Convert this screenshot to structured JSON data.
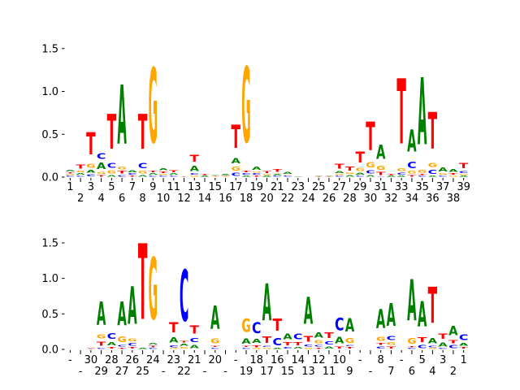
{
  "colors": {
    "A": "#008000",
    "C": "#0000ff",
    "G": "#ffa500",
    "T": "#ff0000"
  },
  "chart_data": [
    {
      "type": "sequence-logo",
      "ylim": [
        0,
        1.64
      ],
      "yticks": [
        "0.0",
        "0.5",
        "1.0",
        "1.5"
      ],
      "ytick_values": [
        0,
        0.5,
        1.0,
        1.5
      ],
      "xticklabels": [
        "1",
        "2",
        "3",
        "4",
        "5",
        "6",
        "7",
        "8",
        "9",
        "10",
        "11",
        "12",
        "13",
        "14",
        "15",
        "16",
        "17",
        "18",
        "19",
        "20",
        "21",
        "22",
        "23",
        "24",
        "25",
        "26",
        "27",
        "28",
        "29",
        "30",
        "31",
        "32",
        "33",
        "34",
        "35",
        "36",
        "37",
        "38",
        "39"
      ],
      "positions": [
        [
          [
            "C",
            0.02
          ],
          [
            "G",
            0.02
          ],
          [
            "T",
            0.02
          ],
          [
            "A",
            0.03
          ]
        ],
        [
          [
            "C",
            0.02
          ],
          [
            "A",
            0.03
          ],
          [
            "G",
            0.03
          ],
          [
            "T",
            0.08
          ]
        ],
        [
          [
            "C",
            0.04
          ],
          [
            "A",
            0.05
          ],
          [
            "G",
            0.08
          ],
          [
            "T",
            0.44
          ]
        ],
        [
          [
            "T",
            0.03
          ],
          [
            "G",
            0.04
          ],
          [
            "A",
            0.12
          ],
          [
            "C",
            0.11
          ]
        ],
        [
          [
            "A",
            0.03
          ],
          [
            "G",
            0.06
          ],
          [
            "C",
            0.09
          ],
          [
            "T",
            0.69
          ]
        ],
        [
          [
            "C",
            0.03
          ],
          [
            "T",
            0.05
          ],
          [
            "G",
            0.05
          ],
          [
            "A",
            1.17
          ]
        ],
        [
          [
            "T",
            0.02
          ],
          [
            "C",
            0.03
          ],
          [
            "A",
            0.04
          ]
        ],
        [
          [
            "A",
            0.03
          ],
          [
            "G",
            0.05
          ],
          [
            "C",
            0.1
          ],
          [
            "T",
            0.69
          ]
        ],
        [
          [
            "C",
            0.02
          ],
          [
            "A",
            0.03
          ],
          [
            "T",
            0.03
          ],
          [
            "G",
            1.49
          ]
        ],
        [
          [
            "C",
            0.02
          ],
          [
            "G",
            0.02
          ],
          [
            "T",
            0.03
          ],
          [
            "A",
            0.04
          ]
        ],
        [
          [
            "C",
            0.02
          ],
          [
            "A",
            0.03
          ],
          [
            "T",
            0.04
          ]
        ],
        [
          [
            "T",
            0.01
          ]
        ],
        [
          [
            "G",
            0.02
          ],
          [
            "C",
            0.03
          ],
          [
            "A",
            0.1
          ],
          [
            "T",
            0.13
          ]
        ],
        [
          [
            "A",
            0.02
          ],
          [
            "T",
            0.02
          ]
        ],
        [
          [
            "G",
            0.01
          ],
          [
            "T",
            0.01
          ],
          [
            "A",
            0.01
          ]
        ],
        [
          [
            "G",
            0.01
          ],
          [
            "T",
            0.01
          ],
          [
            "A",
            0.02
          ]
        ],
        [
          [
            "C",
            0.06
          ],
          [
            "G",
            0.08
          ],
          [
            "A",
            0.1
          ],
          [
            "T",
            0.46
          ]
        ],
        [
          [
            "A",
            0.02
          ],
          [
            "C",
            0.03
          ],
          [
            "T",
            0.03
          ],
          [
            "G",
            1.5
          ]
        ],
        [
          [
            "T",
            0.02
          ],
          [
            "C",
            0.03
          ],
          [
            "G",
            0.02
          ],
          [
            "A",
            0.06
          ]
        ],
        [
          [
            "A",
            0.02
          ],
          [
            "G",
            0.02
          ],
          [
            "T",
            0.04
          ]
        ],
        [
          [
            "C",
            0.02
          ],
          [
            "A",
            0.02
          ],
          [
            "G",
            0.01
          ],
          [
            "T",
            0.05
          ]
        ],
        [
          [
            "C",
            0.02
          ],
          [
            "G",
            0.01
          ],
          [
            "A",
            0.04
          ]
        ],
        [
          [
            "A",
            0.01
          ]
        ],
        [],
        [
          [
            "T",
            0.01
          ],
          [
            "A",
            0.01
          ]
        ],
        [
          [
            "T",
            0.01
          ],
          [
            "A",
            0.01
          ]
        ],
        [
          [
            "C",
            0.02
          ],
          [
            "G",
            0.02
          ],
          [
            "A",
            0.04
          ],
          [
            "T",
            0.09
          ]
        ],
        [
          [
            "A",
            0.03
          ],
          [
            "G",
            0.03
          ],
          [
            "T",
            0.08
          ]
        ],
        [
          [
            "C",
            0.02
          ],
          [
            "A",
            0.04
          ],
          [
            "G",
            0.06
          ],
          [
            "T",
            0.22
          ]
        ],
        [
          [
            "A",
            0.03
          ],
          [
            "C",
            0.06
          ],
          [
            "G",
            0.1
          ],
          [
            "T",
            0.56
          ]
        ],
        [
          [
            "C",
            0.01
          ],
          [
            "T",
            0.06
          ],
          [
            "G",
            0.08
          ],
          [
            "A",
            0.28
          ]
        ],
        [
          [
            "A",
            0.02
          ],
          [
            "T",
            0.02
          ]
        ],
        [
          [
            "A",
            0.02
          ],
          [
            "C",
            0.04
          ],
          [
            "G",
            0.05
          ],
          [
            "T",
            1.29
          ]
        ],
        [
          [
            "T",
            0.03
          ],
          [
            "G",
            0.05
          ],
          [
            "C",
            0.12
          ],
          [
            "A",
            0.44
          ]
        ],
        [
          [
            "C",
            0.02
          ],
          [
            "T",
            0.02
          ],
          [
            "G",
            0.05
          ],
          [
            "A",
            1.33
          ]
        ],
        [
          [
            "A",
            0.02
          ],
          [
            "C",
            0.08
          ],
          [
            "G",
            0.08
          ],
          [
            "T",
            0.72
          ]
        ],
        [
          [
            "C",
            0.02
          ],
          [
            "G",
            0.03
          ],
          [
            "A",
            0.08
          ]
        ],
        [
          [
            "G",
            0.02
          ],
          [
            "T",
            0.03
          ],
          [
            "A",
            0.05
          ]
        ],
        [
          [
            "A",
            0.02
          ],
          [
            "G",
            0.02
          ],
          [
            "C",
            0.04
          ],
          [
            "T",
            0.1
          ]
        ]
      ]
    },
    {
      "type": "sequence-logo",
      "ylim": [
        0,
        1.9
      ],
      "yticks": [
        "0.0",
        "0.5",
        "1.0",
        "1.5"
      ],
      "ytick_values": [
        0,
        0.5,
        1.0,
        1.5
      ],
      "xticklabels": [
        "-",
        "-",
        "30",
        "29",
        "28",
        "27",
        "26",
        "25",
        "24",
        "-",
        "23",
        "22",
        "21",
        "-",
        "20",
        "-",
        "-",
        "19",
        "18",
        "17",
        "16",
        "15",
        "14",
        "13",
        "12",
        "11",
        "10",
        "9",
        "-",
        "-",
        "8",
        "7",
        "-",
        "6",
        "5",
        "4",
        "3",
        "2",
        "1"
      ],
      "positions": [
        [],
        [],
        [
          [
            "T",
            0.01
          ],
          [
            "C",
            0.01
          ],
          [
            "G",
            0.01
          ]
        ],
        [
          [
            "C",
            0.03
          ],
          [
            "T",
            0.1
          ],
          [
            "G",
            0.1
          ],
          [
            "A",
            0.55
          ]
        ],
        [
          [
            "T",
            0.04
          ],
          [
            "A",
            0.08
          ],
          [
            "C",
            0.14
          ]
        ],
        [
          [
            "T",
            0.03
          ],
          [
            "C",
            0.04
          ],
          [
            "G",
            0.14
          ],
          [
            "A",
            0.57
          ]
        ],
        [
          [
            "T",
            0.04
          ],
          [
            "C",
            0.06
          ],
          [
            "G",
            0.06
          ],
          [
            "A",
            0.9
          ]
        ],
        [
          [
            "A",
            0.03
          ],
          [
            "T",
            1.81
          ]
        ],
        [
          [
            "C",
            0.02
          ],
          [
            "T",
            0.04
          ],
          [
            "A",
            0.04
          ],
          [
            "G",
            1.48
          ]
        ],
        [],
        [
          [
            "G",
            0.02
          ],
          [
            "C",
            0.05
          ],
          [
            "A",
            0.12
          ],
          [
            "T",
            0.24
          ]
        ],
        [
          [
            "G",
            0.04
          ],
          [
            "A",
            0.05
          ],
          [
            "T",
            0.04
          ],
          [
            "C",
            1.23
          ]
        ],
        [
          [
            "A",
            0.08
          ],
          [
            "C",
            0.1
          ],
          [
            "T",
            0.19
          ]
        ],
        [],
        [
          [
            "C",
            0.03
          ],
          [
            "T",
            0.03
          ],
          [
            "G",
            0.11
          ],
          [
            "A",
            0.55
          ]
        ],
        [],
        [],
        [
          [
            "C",
            0.03
          ],
          [
            "T",
            0.02
          ],
          [
            "A",
            0.13
          ],
          [
            "G",
            0.31
          ]
        ],
        [
          [
            "G",
            0.02
          ],
          [
            "T",
            0.05
          ],
          [
            "A",
            0.1
          ],
          [
            "C",
            0.26
          ]
        ],
        [
          [
            "G",
            0.03
          ],
          [
            "C",
            0.03
          ],
          [
            "T",
            0.15
          ],
          [
            "A",
            0.88
          ]
        ],
        [
          [
            "A",
            0.02
          ],
          [
            "C",
            0.18
          ],
          [
            "T",
            0.29
          ]
        ],
        [
          [
            "C",
            0.04
          ],
          [
            "T",
            0.07
          ],
          [
            "A",
            0.14
          ]
        ],
        [
          [
            "A",
            0.04
          ],
          [
            "T",
            0.07
          ],
          [
            "C",
            0.14
          ]
        ],
        [
          [
            "G",
            0.03
          ],
          [
            "C",
            0.05
          ],
          [
            "T",
            0.14
          ],
          [
            "A",
            0.64
          ]
        ],
        [
          [
            "T",
            0.03
          ],
          [
            "C",
            0.04
          ],
          [
            "G",
            0.07
          ],
          [
            "A",
            0.13
          ]
        ],
        [
          [
            "A",
            0.05
          ],
          [
            "C",
            0.08
          ],
          [
            "T",
            0.14
          ]
        ],
        [
          [
            "T",
            0.05
          ],
          [
            "A",
            0.15
          ],
          [
            "C",
            0.3
          ]
        ],
        [
          [
            "T",
            0.04
          ],
          [
            "C",
            0.03
          ],
          [
            "G",
            0.11
          ],
          [
            "A",
            0.32
          ]
        ],
        [],
        [],
        [
          [
            "C",
            0.05
          ],
          [
            "T",
            0.05
          ],
          [
            "G",
            0.1
          ],
          [
            "A",
            0.45
          ]
        ],
        [
          [
            "T",
            0.05
          ],
          [
            "G",
            0.06
          ],
          [
            "C",
            0.1
          ],
          [
            "A",
            0.54
          ]
        ],
        [],
        [
          [
            "C",
            0.02
          ],
          [
            "T",
            0.03
          ],
          [
            "G",
            0.14
          ],
          [
            "A",
            0.99
          ]
        ],
        [
          [
            "C",
            0.08
          ],
          [
            "T",
            0.11
          ],
          [
            "A",
            0.61
          ]
        ],
        [
          [
            "G",
            0.02
          ],
          [
            "C",
            0.04
          ],
          [
            "A",
            0.13
          ],
          [
            "T",
            0.86
          ]
        ],
        [
          [
            "C",
            0.02
          ],
          [
            "A",
            0.1
          ],
          [
            "T",
            0.12
          ]
        ],
        [
          [
            "C",
            0.07
          ],
          [
            "T",
            0.08
          ],
          [
            "A",
            0.22
          ]
        ],
        [
          [
            "T",
            0.04
          ],
          [
            "A",
            0.06
          ],
          [
            "C",
            0.14
          ]
        ]
      ]
    }
  ]
}
